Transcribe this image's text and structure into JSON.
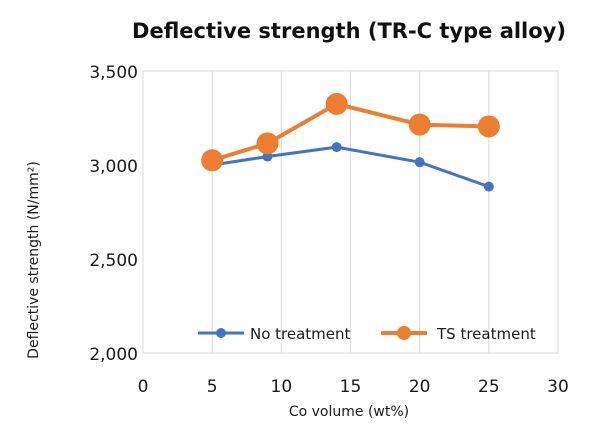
{
  "chart_data": {
    "type": "line",
    "title": "Deflective strength (TR-C type alloy)",
    "xlabel": "Co volume (wt%)",
    "ylabel": "Deflective strength (N/mm²)",
    "xlim": [
      0,
      30
    ],
    "ylim": [
      2000,
      3500
    ],
    "x_ticks": [
      0,
      5,
      10,
      15,
      20,
      25,
      30
    ],
    "y_ticks": [
      2000,
      2500,
      3000,
      3500
    ],
    "x_tick_labels": [
      "0",
      "5",
      "10",
      "15",
      "20",
      "25",
      "30"
    ],
    "y_tick_labels": [
      "2,000",
      "2,500",
      "3,000",
      "3,500"
    ],
    "grid": "vertical",
    "legend_position": "bottom-right",
    "series": [
      {
        "name": "No treatment",
        "color": "#4472C4",
        "x": [
          5,
          9,
          14,
          20,
          25
        ],
        "y": [
          3000,
          3045,
          3095,
          3015,
          2885
        ]
      },
      {
        "name": "TS treatment",
        "color": "#ED7D31",
        "x": [
          5,
          9,
          14,
          20,
          25
        ],
        "y": [
          3025,
          3115,
          3325,
          3215,
          3205
        ]
      }
    ]
  }
}
